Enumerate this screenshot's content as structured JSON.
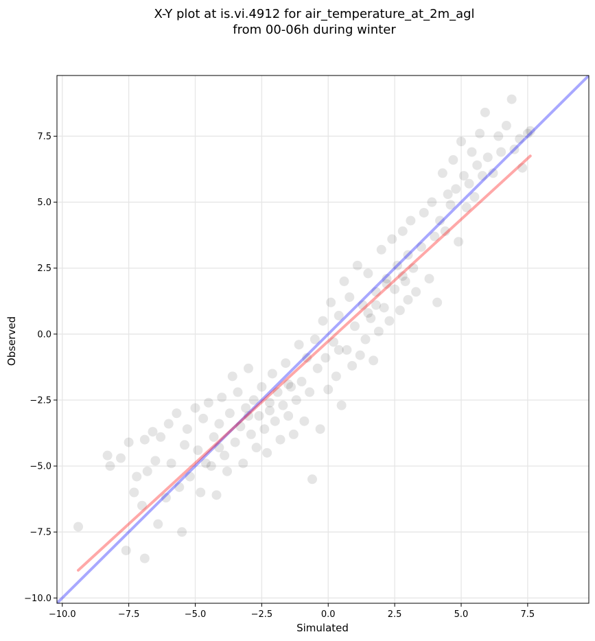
{
  "chart_data": {
    "type": "scatter",
    "title_line1": "X-Y plot at is.vi.4912 for air_temperature_at_2m_agl",
    "title_line2": "from 00-06h during winter",
    "xlabel": "Simulated",
    "ylabel": "Observed",
    "xlim": [
      -10.2,
      9.8
    ],
    "ylim": [
      -10.2,
      9.8
    ],
    "x_ticks": [
      -10.0,
      -7.5,
      -5.0,
      -2.5,
      0.0,
      2.5,
      5.0,
      7.5
    ],
    "y_ticks": [
      -10.0,
      -7.5,
      -5.0,
      -2.5,
      0.0,
      2.5,
      5.0,
      7.5
    ],
    "x_tick_labels": [
      "−10.0",
      "−7.5",
      "−5.0",
      "−2.5",
      "0.0",
      "2.5",
      "5.0",
      "7.5"
    ],
    "y_tick_labels": [
      "−10.0",
      "−7.5",
      "−5.0",
      "−2.5",
      "0.0",
      "2.5",
      "5.0",
      "7.5"
    ],
    "grid": true,
    "point_color": "#000000",
    "point_opacity": 0.1,
    "points": [
      [
        -9.4,
        -7.3
      ],
      [
        -8.3,
        -4.6
      ],
      [
        -8.2,
        -5.0
      ],
      [
        -7.8,
        -4.7
      ],
      [
        -7.6,
        -8.2
      ],
      [
        -7.5,
        -4.1
      ],
      [
        -7.3,
        -6.0
      ],
      [
        -7.2,
        -5.4
      ],
      [
        -7.0,
        -6.5
      ],
      [
        -6.9,
        -8.5
      ],
      [
        -6.9,
        -4.0
      ],
      [
        -6.8,
        -5.2
      ],
      [
        -6.6,
        -3.7
      ],
      [
        -6.5,
        -4.8
      ],
      [
        -6.4,
        -7.2
      ],
      [
        -6.3,
        -3.9
      ],
      [
        -6.1,
        -6.2
      ],
      [
        -6.0,
        -3.4
      ],
      [
        -5.9,
        -4.9
      ],
      [
        -5.7,
        -3.0
      ],
      [
        -5.6,
        -5.8
      ],
      [
        -5.5,
        -7.5
      ],
      [
        -5.4,
        -4.2
      ],
      [
        -5.3,
        -3.6
      ],
      [
        -5.2,
        -5.4
      ],
      [
        -5.0,
        -2.8
      ],
      [
        -4.9,
        -4.4
      ],
      [
        -4.8,
        -6.0
      ],
      [
        -4.7,
        -3.2
      ],
      [
        -4.6,
        -4.9
      ],
      [
        -4.5,
        -2.6
      ],
      [
        -4.4,
        -5.0
      ],
      [
        -4.3,
        -3.9
      ],
      [
        -4.2,
        -6.1
      ],
      [
        -4.1,
        -3.4
      ],
      [
        -4.0,
        -2.4
      ],
      [
        -3.9,
        -4.6
      ],
      [
        -3.8,
        -5.2
      ],
      [
        -3.7,
        -3.0
      ],
      [
        -3.6,
        -1.6
      ],
      [
        -3.5,
        -4.1
      ],
      [
        -3.4,
        -2.2
      ],
      [
        -3.3,
        -3.5
      ],
      [
        -3.2,
        -4.9
      ],
      [
        -3.1,
        -2.8
      ],
      [
        -3.0,
        -1.3
      ],
      [
        -2.9,
        -3.8
      ],
      [
        -2.8,
        -2.5
      ],
      [
        -2.7,
        -4.3
      ],
      [
        -2.6,
        -3.1
      ],
      [
        -2.5,
        -2.0
      ],
      [
        -2.4,
        -3.6
      ],
      [
        -2.3,
        -4.5
      ],
      [
        -2.2,
        -2.9
      ],
      [
        -2.1,
        -1.5
      ],
      [
        -2.0,
        -3.3
      ],
      [
        -1.9,
        -2.2
      ],
      [
        -1.8,
        -4.0
      ],
      [
        -1.7,
        -2.7
      ],
      [
        -1.6,
        -1.1
      ],
      [
        -1.5,
        -3.1
      ],
      [
        -1.4,
        -2.0
      ],
      [
        -1.3,
        -3.8
      ],
      [
        -1.2,
        -2.5
      ],
      [
        -1.1,
        -0.4
      ],
      [
        -1.0,
        -1.8
      ],
      [
        -0.9,
        -3.3
      ],
      [
        -0.8,
        -0.9
      ],
      [
        -0.7,
        -2.2
      ],
      [
        -0.6,
        -5.5
      ],
      [
        -0.5,
        -0.2
      ],
      [
        -0.4,
        -1.3
      ],
      [
        -0.3,
        -3.6
      ],
      [
        -0.2,
        0.5
      ],
      [
        -0.1,
        -0.9
      ],
      [
        0.0,
        -2.1
      ],
      [
        0.1,
        1.2
      ],
      [
        0.2,
        -0.3
      ],
      [
        0.3,
        -1.6
      ],
      [
        0.4,
        0.7
      ],
      [
        0.5,
        -2.7
      ],
      [
        0.6,
        2.0
      ],
      [
        0.7,
        -0.6
      ],
      [
        0.8,
        1.4
      ],
      [
        0.9,
        -1.2
      ],
      [
        1.0,
        0.3
      ],
      [
        1.1,
        2.6
      ],
      [
        1.2,
        -0.8
      ],
      [
        1.3,
        1.1
      ],
      [
        1.4,
        -0.2
      ],
      [
        1.5,
        2.3
      ],
      [
        1.6,
        0.6
      ],
      [
        1.7,
        -1.0
      ],
      [
        1.8,
        1.6
      ],
      [
        1.9,
        0.1
      ],
      [
        2.0,
        3.2
      ],
      [
        2.1,
        1.0
      ],
      [
        2.2,
        2.1
      ],
      [
        2.3,
        0.5
      ],
      [
        2.4,
        3.6
      ],
      [
        2.5,
        1.7
      ],
      [
        2.6,
        2.6
      ],
      [
        2.7,
        0.9
      ],
      [
        2.8,
        3.9
      ],
      [
        2.9,
        2.0
      ],
      [
        3.0,
        1.3
      ],
      [
        3.1,
        4.3
      ],
      [
        3.2,
        2.5
      ],
      [
        3.3,
        1.6
      ],
      [
        3.5,
        3.3
      ],
      [
        3.6,
        4.6
      ],
      [
        3.8,
        2.1
      ],
      [
        3.9,
        5.0
      ],
      [
        4.0,
        3.7
      ],
      [
        4.1,
        1.2
      ],
      [
        4.2,
        4.3
      ],
      [
        4.3,
        6.1
      ],
      [
        4.4,
        3.9
      ],
      [
        4.5,
        5.3
      ],
      [
        4.6,
        4.9
      ],
      [
        4.7,
        6.6
      ],
      [
        4.8,
        5.5
      ],
      [
        4.9,
        3.5
      ],
      [
        5.0,
        7.3
      ],
      [
        5.1,
        6.0
      ],
      [
        5.2,
        4.8
      ],
      [
        5.3,
        5.7
      ],
      [
        5.4,
        6.9
      ],
      [
        5.5,
        5.2
      ],
      [
        5.6,
        6.4
      ],
      [
        5.7,
        7.6
      ],
      [
        5.8,
        6.0
      ],
      [
        5.9,
        8.4
      ],
      [
        6.0,
        6.7
      ],
      [
        6.2,
        6.1
      ],
      [
        6.4,
        7.5
      ],
      [
        6.5,
        6.9
      ],
      [
        6.7,
        7.9
      ],
      [
        6.9,
        8.9
      ],
      [
        7.0,
        7.0
      ],
      [
        7.2,
        7.4
      ],
      [
        7.3,
        6.3
      ],
      [
        7.5,
        7.6
      ],
      [
        7.6,
        7.7
      ],
      [
        -3.0,
        -3.1
      ],
      [
        -2.2,
        -2.6
      ],
      [
        1.5,
        0.8
      ],
      [
        2.2,
        1.9
      ],
      [
        2.8,
        2.2
      ],
      [
        0.4,
        -0.6
      ],
      [
        -1.5,
        -1.9
      ],
      [
        -4.1,
        -4.3
      ],
      [
        1.8,
        1.1
      ],
      [
        3.0,
        3.0
      ]
    ],
    "lines": [
      {
        "name": "",
        "color": "#0000ff",
        "opacity": 0.34,
        "x": [
          -10.2,
          9.8
        ],
        "y": [
          -10.2,
          9.8
        ]
      },
      {
        "name": "",
        "color": "#ff0000",
        "opacity": 0.34,
        "x": [
          -9.4,
          7.6
        ],
        "y": [
          -8.95,
          6.75
        ]
      }
    ]
  }
}
